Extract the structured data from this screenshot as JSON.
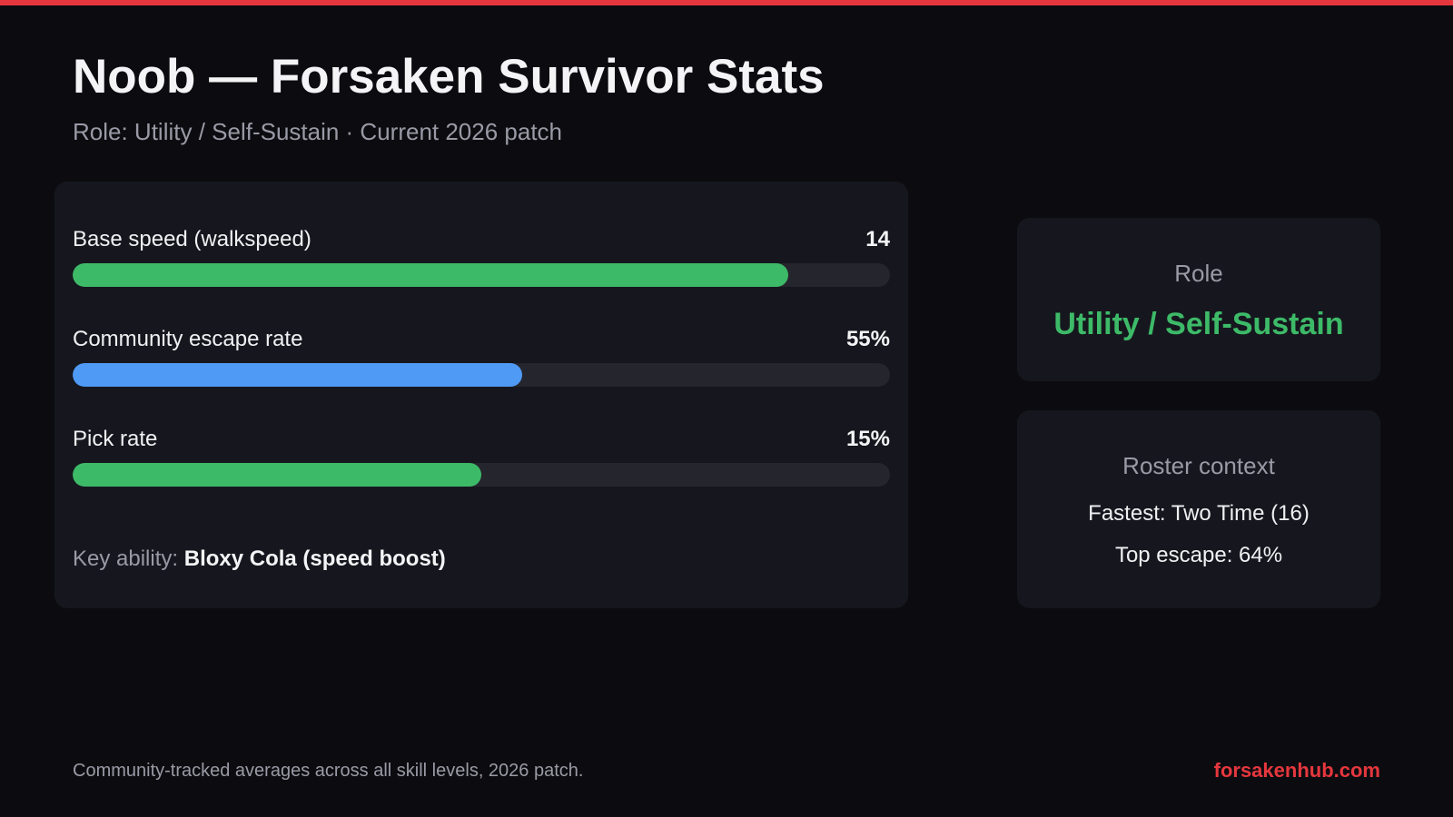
{
  "colors": {
    "accent": "#e5373d",
    "background": "#0c0c10",
    "card": "#16171e",
    "track": "#25262d",
    "green": "#3dba68",
    "blue": "#4f9af5"
  },
  "header": {
    "title": "Noob — Forsaken Survivor Stats",
    "subtitle": "Role: Utility / Self-Sustain · Current 2026 patch"
  },
  "stats": [
    {
      "label": "Base speed (walkspeed)",
      "value": "14",
      "fill_fraction": 0.875,
      "color": "#3dba68"
    },
    {
      "label": "Community escape rate",
      "value": "55%",
      "fill_fraction": 0.55,
      "color": "#4f9af5"
    },
    {
      "label": "Pick rate",
      "value": "15%",
      "fill_fraction": 0.5,
      "color": "#3dba68"
    }
  ],
  "key_ability": {
    "label": "Key ability:",
    "value": "Bloxy Cola (speed boost)"
  },
  "role_card": {
    "heading": "Role",
    "value": "Utility / Self-Sustain"
  },
  "roster_card": {
    "heading": "Roster context",
    "fastest": "Fastest: Two Time (16)",
    "top_escape": "Top escape: 64%"
  },
  "footer": {
    "note": "Community-tracked averages across all skill levels, 2026 patch.",
    "brand": "forsakenhub.com"
  }
}
